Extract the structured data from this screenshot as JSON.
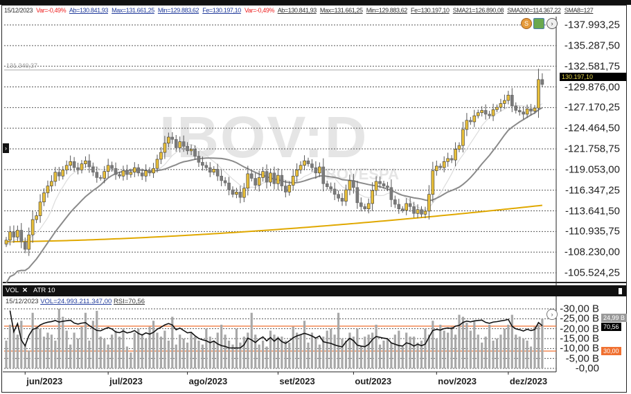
{
  "header": {
    "date": "15/12/2023",
    "var1": "Var=-0,49%",
    "ab1": "Ab=130.841,93",
    "max1": "Max=131.661,25",
    "min1": "Min=129.883,62",
    "fe1": "Fe=130.197,10",
    "var2": "Var=-0,49%",
    "ab2": "Ab=130.841,93",
    "max2": "Max=131.661,25",
    "min2": "Min=129.883,62",
    "fe2": "Fe=130.197,10",
    "sma21": "SMA21=126.890,08",
    "sma200": "SMA200=114.367,22",
    "sma8": "SMA8=127"
  },
  "watermark": {
    "symbol": "IBOV:D",
    "exchange": "BOVESPA"
  },
  "price_tags": {
    "last": "130.197,10",
    "reference": "131.340,37"
  },
  "icons": [
    "s-coin-icon",
    "globe-icon",
    "chevron-right-circle-icon"
  ],
  "indicator_panel": {
    "tabs": [
      "VOL",
      "ATR 10"
    ],
    "close_label": "✕",
    "info_date": "15/12/2023",
    "info_vol": "VOL=24.993.211.347,00",
    "info_rsi": "RSI=70,56",
    "tags": {
      "vol": "24,99 B",
      "rsi": "70,56",
      "rsi_low": "30,00"
    }
  },
  "colors": {
    "up": "#e8bf3a",
    "down": "#7a7a7a",
    "sma21": "#8a8a8a",
    "sma200": "#e0a800",
    "sma8": "#dcdcdc",
    "rsi_band": "#f07030",
    "last_tag_text": "#e8d84a"
  },
  "chart_data": [
    {
      "type": "candlestick",
      "title": "IBOV:D",
      "y_ticks": [
        "137.993,25",
        "135.287,50",
        "132.581,75",
        "129.876,00",
        "127.170,25",
        "124.464,50",
        "121.758,75",
        "119.053,00",
        "116.347,25",
        "113.641,50",
        "110.935,75",
        "108.230,00",
        "105.524,25"
      ],
      "y_tick_values": [
        137993.25,
        135287.5,
        132581.75,
        129876,
        127170.25,
        124464.5,
        121758.75,
        119053,
        116347.25,
        113641.5,
        110935.75,
        108230,
        105524.25
      ],
      "ylim": [
        105524.25,
        137993.25
      ],
      "grid": true,
      "x_ticks": [
        {
          "label": "jun/2023",
          "index": 5
        },
        {
          "label": "jul/2023",
          "index": 27
        },
        {
          "label": "ago/2023",
          "index": 48
        },
        {
          "label": "set/2023",
          "index": 72
        },
        {
          "label": "out/2023",
          "index": 92
        },
        {
          "label": "nov/2023",
          "index": 114
        },
        {
          "label": "dez/2023",
          "index": 133
        }
      ],
      "last_candle": {
        "open": 130841.93,
        "high": 131661.25,
        "low": 129883.62,
        "close": 130197.1
      },
      "close": [
        109800,
        110900,
        110200,
        111100,
        109600,
        108600,
        110500,
        112500,
        113000,
        114800,
        116000,
        116900,
        117500,
        118700,
        118200,
        119000,
        119600,
        120100,
        119300,
        119000,
        119800,
        120200,
        119400,
        118700,
        118000,
        117900,
        118800,
        119600,
        119200,
        118400,
        118200,
        118900,
        118400,
        118700,
        119300,
        118600,
        118200,
        118900,
        118600,
        119200,
        120400,
        121300,
        122500,
        123300,
        123000,
        121900,
        122700,
        122100,
        121500,
        121700,
        120800,
        120000,
        119600,
        119300,
        118700,
        119100,
        118200,
        117600,
        117300,
        116400,
        115800,
        116100,
        115400,
        116600,
        118500,
        117900,
        117000,
        118000,
        118800,
        117400,
        118600,
        117200,
        118300,
        116900,
        116100,
        117000,
        118200,
        119000,
        119600,
        120200,
        119800,
        119300,
        118600,
        119400,
        117200,
        116800,
        116500,
        115800,
        115300,
        114900,
        116400,
        117600,
        116700,
        114700,
        114200,
        113900,
        114600,
        116300,
        117500,
        117200,
        116900,
        116700,
        115100,
        114500,
        113900,
        113700,
        114600,
        114200,
        113300,
        113800,
        113200,
        113600,
        115800,
        118900,
        119500,
        119300,
        120100,
        120500,
        120300,
        121700,
        122200,
        124300,
        125500,
        125300,
        126100,
        126500,
        126800,
        126300,
        126100,
        126900,
        127200,
        127700,
        128100,
        128800,
        127400,
        126800,
        126600,
        126300,
        127000,
        126700,
        127100,
        130840,
        130197.1
      ],
      "sma200": {
        "start": 109600,
        "end": 114367.22
      },
      "sma21_last": 126890.08
    },
    {
      "type": "bar+line",
      "series": [
        {
          "name": "VOL",
          "unit": "B"
        },
        {
          "name": "RSI"
        }
      ],
      "y_ticks": [
        "30,00 B",
        "25,00 B",
        "20,00 B",
        "15,00 B",
        "10,00 B",
        "5,00 B",
        "0,00"
      ],
      "y_tick_values": [
        30,
        25,
        20,
        15,
        10,
        5,
        0
      ],
      "rsi_levels": [
        70,
        30
      ],
      "rsi_last": 70.56,
      "volume_b": [
        14,
        22,
        19,
        17,
        24,
        12,
        9,
        28,
        21,
        20,
        16,
        18,
        17,
        14,
        30,
        26,
        19,
        12,
        18,
        15,
        21,
        28,
        14,
        24,
        29,
        16,
        15,
        12,
        17,
        19,
        16,
        20,
        11,
        8,
        18,
        20,
        17,
        15,
        21,
        24,
        18,
        16,
        19,
        14,
        26,
        12,
        17,
        15,
        13,
        18,
        16,
        14,
        12,
        20,
        16,
        14,
        18,
        22,
        17,
        14,
        12,
        20,
        13,
        16,
        18,
        28,
        17,
        12,
        14,
        11,
        19,
        17,
        16,
        16,
        14,
        13,
        21,
        18,
        17,
        24,
        13,
        18,
        15,
        12,
        16,
        19,
        20,
        17,
        28,
        15,
        14,
        18,
        16,
        20,
        11,
        16,
        17,
        18,
        22,
        12,
        14,
        15,
        13,
        17,
        19,
        11,
        18,
        16,
        16,
        13,
        14,
        20,
        17,
        24,
        15,
        22,
        19,
        18,
        21,
        17,
        27,
        26,
        23,
        19,
        24,
        17,
        13,
        16,
        22,
        14,
        15,
        17,
        20,
        22,
        27,
        17,
        16,
        15,
        14,
        11,
        21,
        22,
        24.99
      ]
    }
  ]
}
